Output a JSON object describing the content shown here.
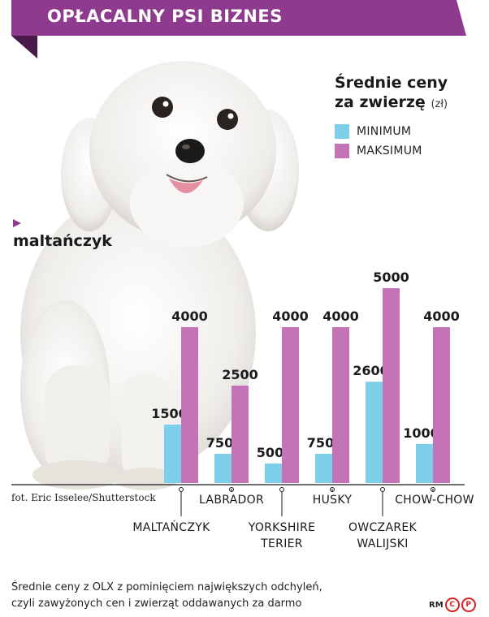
{
  "header": {
    "title": "OPŁACALNY PSI BIZNES"
  },
  "legend": {
    "title_line1": "Średnie ceny",
    "title_line2": "za zwierzę",
    "unit": "(zł)",
    "min_label": "MINIMUM",
    "max_label": "MAKSIMUM"
  },
  "photo": {
    "subject_label": "maltańczyk",
    "credit": "fot. Eric Isselee/Shutterstock"
  },
  "footnote": {
    "line1": "Średnie ceny z OLX z pominięciem największych odchyleń,",
    "line2": "czyli zawyżonych cen i zwierząt oddawanych za darmo"
  },
  "brand": {
    "text": "RM",
    "c": "C",
    "p": "P"
  },
  "colors": {
    "accent": "#8e3a8e",
    "min": "#7ecfe9",
    "max": "#c474b6"
  },
  "chart_data": {
    "type": "bar",
    "ylim": [
      0,
      5000
    ],
    "categories": [
      [
        "MALTAŃCZYK"
      ],
      [
        "LABRADOR"
      ],
      [
        "YORKSHIRE",
        "TERIER"
      ],
      [
        "HUSKY"
      ],
      [
        "OWCZAREK",
        "WALIJSKI"
      ],
      [
        "CHOW-CHOW"
      ]
    ],
    "series": [
      {
        "name": "MINIMUM",
        "values": [
          1500,
          750,
          500,
          750,
          2600,
          1000
        ]
      },
      {
        "name": "MAKSIMUM",
        "values": [
          4000,
          2500,
          4000,
          4000,
          5000,
          4000
        ]
      }
    ]
  }
}
